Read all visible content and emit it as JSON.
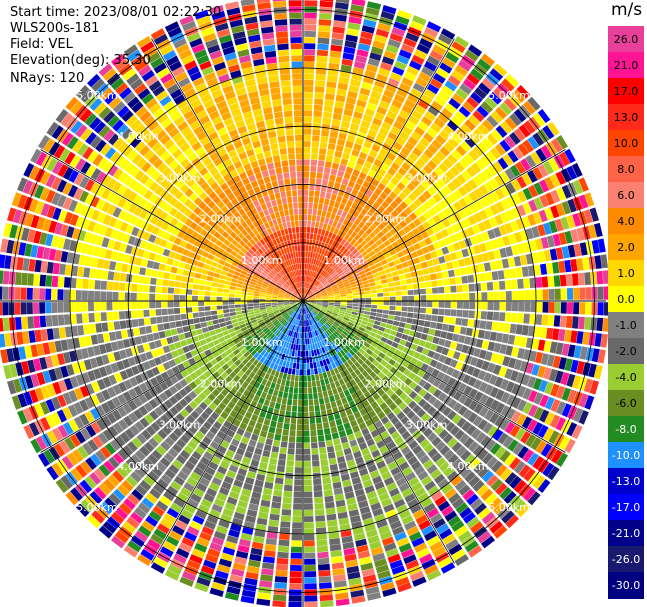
{
  "header": {
    "start_time": "Start time: 2023/08/01 02:22:30",
    "instrument": "WLS200s-181",
    "field": "Field: VEL",
    "elevation": "Elevation(deg): 35.30",
    "nrays": "NRays: 120"
  },
  "colorbar": {
    "title": "m/s",
    "labels": [
      "26.0",
      "21.0",
      "17.0",
      "13.0",
      "10.0",
      "8.0",
      "6.0",
      "4.0",
      "2.0",
      "1.0",
      "0.0",
      "-1.0",
      "-2.0",
      "-4.0",
      "-6.0",
      "-8.0",
      "-10.0",
      "-13.0",
      "-17.0",
      "-21.0",
      "-26.0",
      "-30.0"
    ],
    "colors": [
      "#e8409a",
      "#ff1493",
      "#ff0000",
      "#ff2a1a",
      "#ff4500",
      "#ff6347",
      "#fa8072",
      "#ff8c00",
      "#ffa500",
      "#ffd700",
      "#ffff00",
      "#808080",
      "#696969",
      "#9acd32",
      "#6b8e23",
      "#228b22",
      "#1e90ff",
      "#0000cd",
      "#0000ff",
      "#00008b",
      "#191970",
      "#000080"
    ],
    "label_colors": [
      "#000000",
      "#000000",
      "#000000",
      "#000000",
      "#000000",
      "#000000",
      "#000000",
      "#000000",
      "#000000",
      "#000000",
      "#000000",
      "#000000",
      "#000000",
      "#000000",
      "#000000",
      "#ffffff",
      "#ffffff",
      "#ffffff",
      "#ffffff",
      "#ffffff",
      "#ffffff",
      "#ffffff"
    ]
  },
  "chart_data": {
    "type": "heatmap",
    "projection": "polar PPI",
    "field": "VEL",
    "units": "m/s",
    "n_rays": 120,
    "range_max_km": 5.2,
    "range_ring_labels_km": [
      "1.00km",
      "2.00km",
      "3.00km",
      "4.00km",
      "5.00km"
    ],
    "azimuth_grid_deg": [
      0,
      30,
      60,
      90,
      120,
      150,
      180,
      210,
      240,
      270,
      300,
      330
    ],
    "velocity_pattern": {
      "north_sector_near": 13.0,
      "north_sector_mid": 6.0,
      "north_sector_far": 2.0,
      "south_sector_near": -10.0,
      "south_sector_mid": -6.0,
      "south_sector_far": -2.0,
      "east_west": 0.0,
      "noise_beyond_km": 4.2
    }
  }
}
